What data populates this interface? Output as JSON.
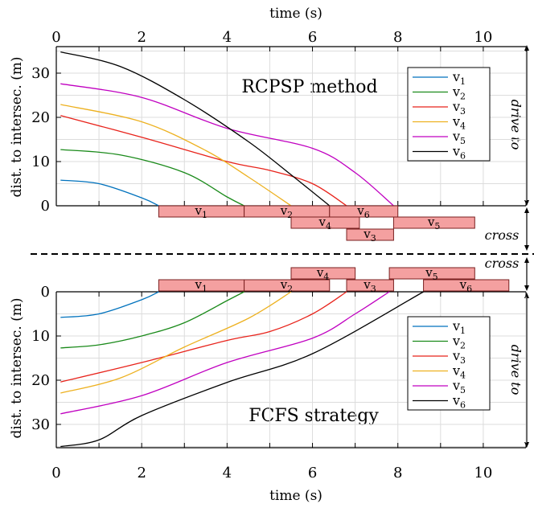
{
  "chart_data": [
    {
      "type": "line",
      "title": "RCPSP method",
      "xlabel": "time (s)",
      "ylabel": "dist. to intersec. (m)",
      "xlim": [
        0,
        11
      ],
      "ylim": [
        0,
        36
      ],
      "xticks": [
        "0",
        "2",
        "4",
        "6",
        "8",
        "10"
      ],
      "yticks": [
        "0",
        "10",
        "20",
        "30"
      ],
      "grid": true,
      "legend_position": "top-right",
      "series": [
        {
          "name": "v1",
          "color": "#0072BD",
          "x": [
            0.1,
            1.0,
            2.0,
            2.4
          ],
          "y": [
            5.8,
            5.0,
            1.8,
            0
          ]
        },
        {
          "name": "v2",
          "color": "#1a8a1a",
          "x": [
            0.1,
            1.5,
            3.0,
            4.0,
            4.4
          ],
          "y": [
            12.7,
            11.5,
            7.5,
            2.0,
            0
          ]
        },
        {
          "name": "v3",
          "color": "#e8231b",
          "x": [
            0.1,
            2.0,
            4.0,
            5.0,
            6.0,
            6.8
          ],
          "y": [
            20.4,
            15.5,
            10.0,
            8.0,
            5.0,
            0
          ]
        },
        {
          "name": "v4",
          "color": "#EDB120",
          "x": [
            0.1,
            2.0,
            3.5,
            4.5,
            5.5
          ],
          "y": [
            22.9,
            19.0,
            12.5,
            6.5,
            0
          ]
        },
        {
          "name": "v5",
          "color": "#c000c0",
          "x": [
            0.1,
            2.0,
            4.0,
            6.0,
            7.0,
            7.9
          ],
          "y": [
            27.6,
            24.5,
            17.5,
            13.0,
            7.5,
            0
          ]
        },
        {
          "name": "v6",
          "color": "#000000",
          "x": [
            0.1,
            1.5,
            3.0,
            4.5,
            5.5,
            6.4
          ],
          "y": [
            34.8,
            31.5,
            24.0,
            14.5,
            7.0,
            0
          ]
        }
      ],
      "cross_blocks": [
        {
          "label": "v1",
          "start": 2.4,
          "end": 4.4,
          "row": 0
        },
        {
          "label": "v2",
          "start": 4.4,
          "end": 6.4,
          "row": 0
        },
        {
          "label": "v6",
          "start": 6.4,
          "end": 8.0,
          "row": 0
        },
        {
          "label": "v4",
          "start": 5.5,
          "end": 7.1,
          "row": 1
        },
        {
          "label": "v5",
          "start": 7.9,
          "end": 9.8,
          "row": 1
        },
        {
          "label": "v3",
          "start": 6.8,
          "end": 7.9,
          "row": 2
        }
      ]
    },
    {
      "type": "line",
      "title": "FCFS strategy",
      "xlabel": "time (s)",
      "ylabel": "dist. to intersec. (m)",
      "xlim": [
        0,
        11
      ],
      "ylim": [
        0,
        36
      ],
      "y_inverted": true,
      "xticks": [
        "0",
        "2",
        "4",
        "6",
        "8",
        "10"
      ],
      "yticks": [
        "0",
        "10",
        "20",
        "30"
      ],
      "grid": true,
      "legend_position": "top-right",
      "series": [
        {
          "name": "v1",
          "color": "#0072BD",
          "x": [
            0.1,
            1.0,
            2.0,
            2.4
          ],
          "y": [
            5.8,
            5.0,
            1.8,
            0
          ]
        },
        {
          "name": "v2",
          "color": "#1a8a1a",
          "x": [
            0.1,
            1.0,
            2.0,
            3.0,
            4.0,
            4.4
          ],
          "y": [
            12.7,
            12.0,
            10.0,
            7.0,
            2.0,
            0
          ]
        },
        {
          "name": "v3",
          "color": "#e8231b",
          "x": [
            0.1,
            2.0,
            4.0,
            5.0,
            6.0,
            6.8
          ],
          "y": [
            20.4,
            16.0,
            11.0,
            9.0,
            5.0,
            0
          ]
        },
        {
          "name": "v4",
          "color": "#EDB120",
          "x": [
            0.1,
            1.5,
            3.0,
            4.5,
            5.5
          ],
          "y": [
            22.9,
            19.5,
            12.5,
            6.0,
            0
          ]
        },
        {
          "name": "v5",
          "color": "#c000c0",
          "x": [
            0.1,
            2.0,
            4.0,
            6.0,
            7.0,
            7.8
          ],
          "y": [
            27.6,
            23.5,
            16.0,
            10.5,
            5.0,
            0
          ]
        },
        {
          "name": "v6",
          "color": "#000000",
          "x": [
            0.1,
            1.0,
            2.0,
            4.0,
            6.0,
            8.6
          ],
          "y": [
            35.0,
            33.5,
            28.0,
            20.5,
            14.0,
            0
          ]
        }
      ],
      "cross_blocks": [
        {
          "label": "v1",
          "start": 2.4,
          "end": 4.4,
          "row": 0
        },
        {
          "label": "v2",
          "start": 4.4,
          "end": 6.4,
          "row": 0
        },
        {
          "label": "v3",
          "start": 6.8,
          "end": 7.9,
          "row": 0
        },
        {
          "label": "v6",
          "start": 8.6,
          "end": 10.6,
          "row": 0
        },
        {
          "label": "v4",
          "start": 5.5,
          "end": 7.0,
          "row": 1
        },
        {
          "label": "v5",
          "start": 7.8,
          "end": 9.8,
          "row": 1
        }
      ]
    }
  ],
  "labels": {
    "drive_to": "drive to",
    "cross": "cross"
  }
}
